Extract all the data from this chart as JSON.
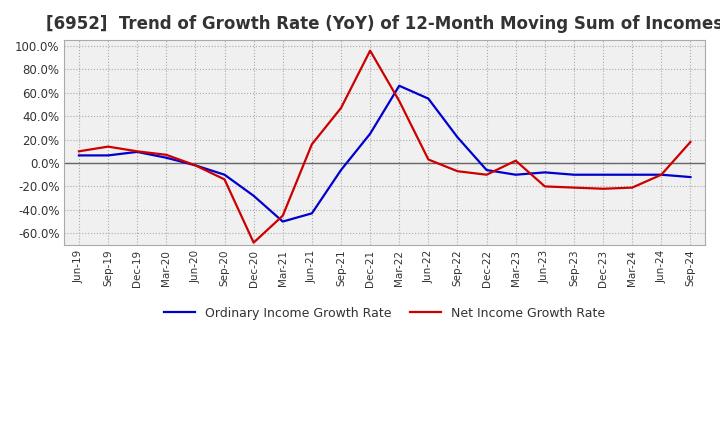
{
  "title": "[6952]  Trend of Growth Rate (YoY) of 12-Month Moving Sum of Incomes",
  "title_fontsize": 12,
  "ylim": [
    -0.7,
    1.05
  ],
  "yticks": [
    -0.6,
    -0.4,
    -0.2,
    0.0,
    0.2,
    0.4,
    0.6,
    0.8,
    1.0
  ],
  "xlabel": "",
  "ylabel": "",
  "legend_labels": [
    "Ordinary Income Growth Rate",
    "Net Income Growth Rate"
  ],
  "line_colors": [
    "#0000cc",
    "#cc0000"
  ],
  "background_color": "#ffffff",
  "plot_bg_color": "#f0f0f0",
  "grid_color": "#aaaaaa",
  "x_labels": [
    "Jun-19",
    "Sep-19",
    "Dec-19",
    "Mar-20",
    "Jun-20",
    "Sep-20",
    "Dec-20",
    "Mar-21",
    "Jun-21",
    "Sep-21",
    "Dec-21",
    "Mar-22",
    "Jun-22",
    "Sep-22",
    "Dec-22",
    "Mar-23",
    "Jun-23",
    "Sep-23",
    "Dec-23",
    "Mar-24",
    "Jun-24",
    "Sep-24"
  ],
  "ordinary_income": [
    0.065,
    0.065,
    0.095,
    0.045,
    -0.02,
    -0.1,
    -0.28,
    -0.5,
    -0.43,
    -0.06,
    0.25,
    0.66,
    0.55,
    0.22,
    -0.06,
    -0.1,
    -0.08,
    -0.1,
    -0.1,
    -0.1,
    -0.1,
    -0.12
  ],
  "net_income": [
    0.1,
    0.14,
    0.1,
    0.07,
    -0.02,
    -0.14,
    -0.68,
    -0.45,
    0.16,
    0.47,
    0.96,
    0.53,
    0.03,
    -0.07,
    -0.1,
    0.02,
    -0.2,
    -0.21,
    -0.22,
    -0.21,
    -0.1,
    0.18
  ]
}
